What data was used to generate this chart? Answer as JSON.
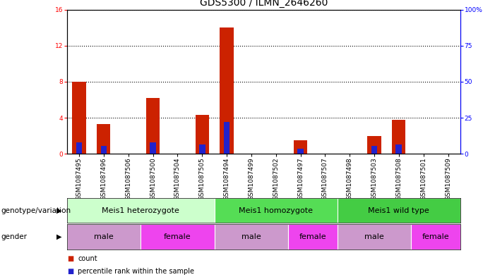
{
  "title": "GDS5300 / ILMN_2646260",
  "samples": [
    "GSM1087495",
    "GSM1087496",
    "GSM1087506",
    "GSM1087500",
    "GSM1087504",
    "GSM1087505",
    "GSM1087494",
    "GSM1087499",
    "GSM1087502",
    "GSM1087497",
    "GSM1087507",
    "GSM1087498",
    "GSM1087503",
    "GSM1087508",
    "GSM1087501",
    "GSM1087509"
  ],
  "counts": [
    8.0,
    3.3,
    0.0,
    6.2,
    0.0,
    4.3,
    14.0,
    0.0,
    0.0,
    1.5,
    0.0,
    0.0,
    2.0,
    3.8,
    0.0,
    0.0
  ],
  "percentiles": [
    8.0,
    5.5,
    0.0,
    8.0,
    0.0,
    6.5,
    22.0,
    0.0,
    0.0,
    3.5,
    0.0,
    0.0,
    5.5,
    6.5,
    0.0,
    0.0
  ],
  "bar_color": "#cc2200",
  "percentile_color": "#2222cc",
  "ylim_left": [
    0,
    16
  ],
  "ylim_right": [
    0,
    100
  ],
  "yticks_left": [
    0,
    4,
    8,
    12,
    16
  ],
  "ytick_labels_left": [
    "0",
    "4",
    "8",
    "12",
    "16"
  ],
  "yticks_right": [
    0,
    25,
    50,
    75,
    100
  ],
  "ytick_labels_right": [
    "0",
    "25",
    "50",
    "75",
    "100%"
  ],
  "genotype_groups": [
    {
      "label": "Meis1 heterozygote",
      "start": 0,
      "end": 5,
      "color": "#ccffcc"
    },
    {
      "label": "Meis1 homozygote",
      "start": 6,
      "end": 10,
      "color": "#55dd55"
    },
    {
      "label": "Meis1 wild type",
      "start": 11,
      "end": 15,
      "color": "#44cc44"
    }
  ],
  "gender_groups": [
    {
      "label": "male",
      "start": 0,
      "end": 2,
      "color": "#dd99dd"
    },
    {
      "label": "female",
      "start": 3,
      "end": 5,
      "color": "#ee55ee"
    },
    {
      "label": "male",
      "start": 6,
      "end": 8,
      "color": "#dd99dd"
    },
    {
      "label": "female",
      "start": 9,
      "end": 10,
      "color": "#ee55ee"
    },
    {
      "label": "male",
      "start": 11,
      "end": 13,
      "color": "#dd99dd"
    },
    {
      "label": "female",
      "start": 14,
      "end": 15,
      "color": "#ee55ee"
    }
  ],
  "legend_count_color": "#cc2200",
  "legend_percentile_color": "#2222cc",
  "background_color": "#ffffff",
  "bar_width": 0.55,
  "percentile_bar_width": 0.25,
  "title_fontsize": 10,
  "tick_fontsize": 6.5,
  "label_fontsize": 8,
  "row_label_fontsize": 7.5
}
